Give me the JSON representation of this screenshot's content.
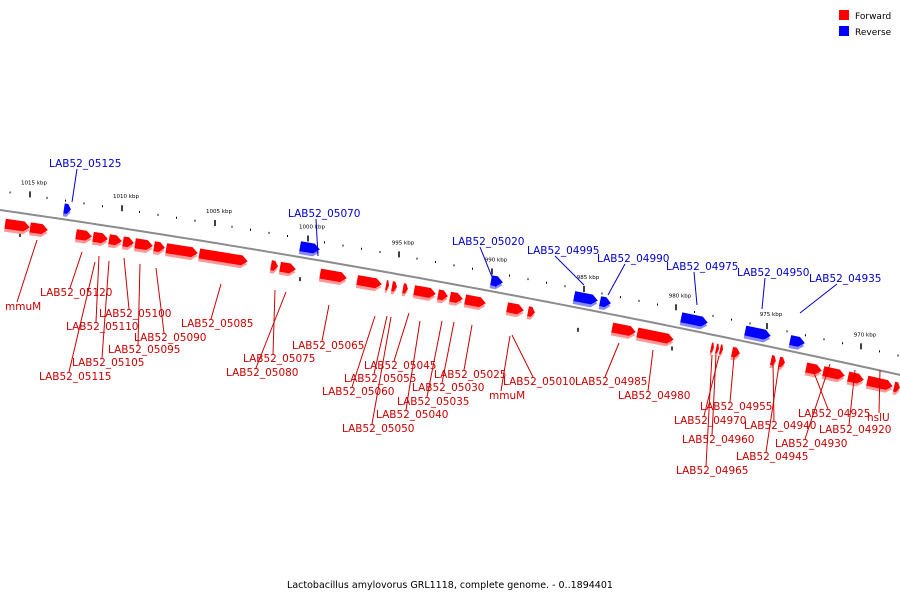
{
  "legend": {
    "forward_label": "Forward",
    "reverse_label": "Reverse",
    "forward_color": "#ff0000",
    "reverse_color": "#0000ff"
  },
  "caption": "Lactobacillus amylovorus GRL1118, complete genome. - 0..1894401",
  "colors": {
    "backbone": "#8c8c8c",
    "forward_label": "#cc0000",
    "reverse_label": "#0000cc"
  },
  "ticks": [
    "1015 kbp",
    "1010 kbp",
    "1005 kbp",
    "1000 kbp",
    "995 kbp",
    "990 kbp",
    "985 kbp",
    "980 kbp",
    "975 kbp",
    "970 kbp"
  ],
  "reverse_labels": [
    "LAB52_05125",
    "LAB52_05070",
    "LAB52_05020",
    "LAB52_04995",
    "LAB52_04990",
    "LAB52_04975",
    "LAB52_04950",
    "LAB52_04935"
  ],
  "forward_labels": [
    "mmuM",
    "LAB52_05120",
    "LAB52_05110",
    "LAB52_05100",
    "LAB52_05085",
    "LAB52_05090",
    "LAB52_05095",
    "LAB52_05105",
    "LAB52_05115",
    "LAB52_05065",
    "LAB52_05075",
    "LAB52_05080",
    "LAB52_05045",
    "LAB52_05055",
    "LAB52_05060",
    "LAB52_05025",
    "LAB52_05030",
    "LAB52_05035",
    "LAB52_05040",
    "LAB52_05050",
    "LAB52_05010",
    "mmuM",
    "LAB52_04985",
    "LAB52_04980",
    "LAB52_04955",
    "LAB52_04970",
    "LAB52_04960",
    "LAB52_04965",
    "LAB52_04940",
    "LAB52_04945",
    "LAB52_04925",
    "LAB52_04930",
    "LAB52_04920",
    "hslU"
  ]
}
